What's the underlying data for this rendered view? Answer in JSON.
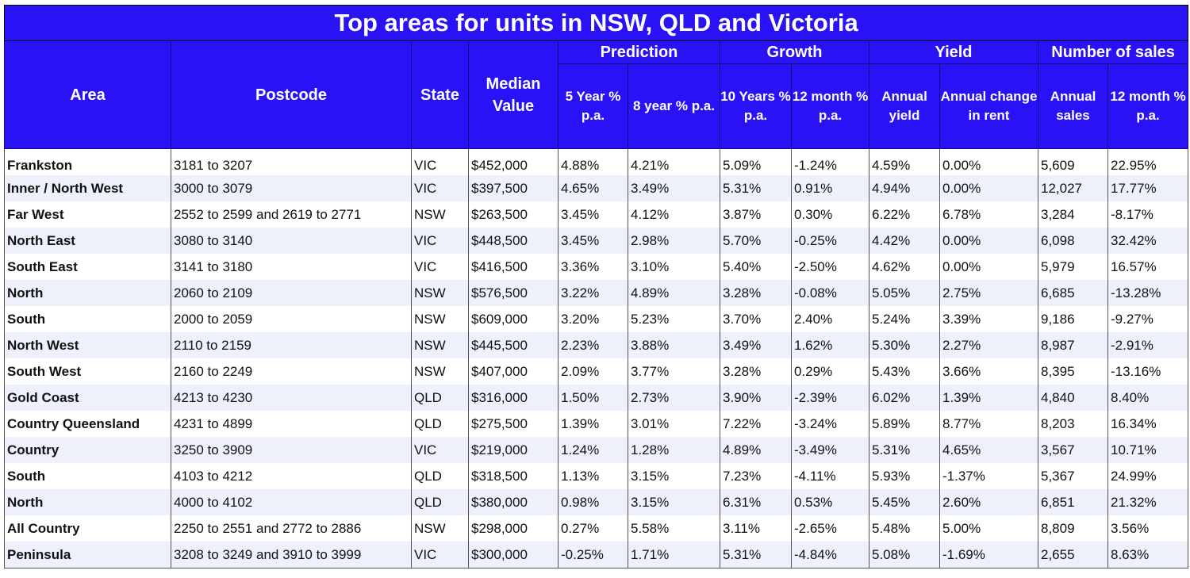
{
  "chart_data": {
    "type": "table",
    "title": "Top areas for units in NSW, QLD and Victoria",
    "group_headers": {
      "prediction": "Prediction",
      "growth": "Growth",
      "yield": "Yield",
      "sales": "Number of sales"
    },
    "columns": {
      "area": "Area",
      "postcode": "Postcode",
      "state": "State",
      "median": "Median Value",
      "pred5": "5 Year % p.a.",
      "pred8": "8 year % p.a.",
      "growth10": "10 Years % p.a.",
      "growth12": "12 month % p.a.",
      "yield_annual": "Annual yield",
      "yield_rent": "Annual change in rent",
      "sales_annual": "Annual sales",
      "sales12": "12 month % p.a."
    },
    "rows": [
      [
        "Frankston",
        "3181 to 3207",
        "VIC",
        "$452,000",
        "4.88%",
        "4.21%",
        "5.09%",
        "-1.24%",
        "4.59%",
        "0.00%",
        "5,609",
        "22.95%"
      ],
      [
        "Inner / North West",
        "3000 to 3079",
        "VIC",
        "$397,500",
        "4.65%",
        "3.49%",
        "5.31%",
        "0.91%",
        "4.94%",
        "0.00%",
        "12,027",
        "17.77%"
      ],
      [
        "Far West",
        "2552 to 2599 and 2619 to 2771",
        "NSW",
        "$263,500",
        "3.45%",
        "4.12%",
        "3.87%",
        "0.30%",
        "6.22%",
        "6.78%",
        "3,284",
        "-8.17%"
      ],
      [
        "North East",
        "3080 to 3140",
        "VIC",
        "$448,500",
        "3.45%",
        "2.98%",
        "5.70%",
        "-0.25%",
        "4.42%",
        "0.00%",
        "6,098",
        "32.42%"
      ],
      [
        "South East",
        "3141 to 3180",
        "VIC",
        "$416,500",
        "3.36%",
        "3.10%",
        "5.40%",
        "-2.50%",
        "4.62%",
        "0.00%",
        "5,979",
        "16.57%"
      ],
      [
        "North",
        "2060 to 2109",
        "NSW",
        "$576,500",
        "3.22%",
        "4.89%",
        "3.28%",
        "-0.08%",
        "5.05%",
        "2.75%",
        "6,685",
        "-13.28%"
      ],
      [
        "South",
        "2000 to 2059",
        "NSW",
        "$609,000",
        "3.20%",
        "5.23%",
        "3.70%",
        "2.40%",
        "5.24%",
        "3.39%",
        "9,186",
        "-9.27%"
      ],
      [
        "North West",
        "2110 to 2159",
        "NSW",
        "$445,500",
        "2.23%",
        "3.88%",
        "3.49%",
        "1.62%",
        "5.30%",
        "2.27%",
        "8,987",
        "-2.91%"
      ],
      [
        "South West",
        "2160 to 2249",
        "NSW",
        "$407,000",
        "2.09%",
        "3.77%",
        "3.28%",
        "0.29%",
        "5.43%",
        "3.66%",
        "8,395",
        "-13.16%"
      ],
      [
        "Gold Coast",
        "4213 to 4230",
        "QLD",
        "$316,000",
        "1.50%",
        "2.73%",
        "3.90%",
        "-2.39%",
        "6.02%",
        "1.39%",
        "4,840",
        "8.40%"
      ],
      [
        "Country Queensland",
        "4231 to 4899",
        "QLD",
        "$275,500",
        "1.39%",
        "3.01%",
        "7.22%",
        "-3.24%",
        "5.89%",
        "8.77%",
        "8,203",
        "16.34%"
      ],
      [
        "Country",
        "3250 to 3909",
        "VIC",
        "$219,000",
        "1.24%",
        "1.28%",
        "4.89%",
        "-3.49%",
        "5.31%",
        "4.65%",
        "3,567",
        "10.71%"
      ],
      [
        "South",
        "4103 to 4212",
        "QLD",
        "$318,500",
        "1.13%",
        "3.15%",
        "7.23%",
        "-4.11%",
        "5.93%",
        "-1.37%",
        "5,367",
        "24.99%"
      ],
      [
        "North",
        "4000 to 4102",
        "QLD",
        "$380,000",
        "0.98%",
        "3.15%",
        "6.31%",
        "0.53%",
        "5.45%",
        "2.60%",
        "6,851",
        "21.32%"
      ],
      [
        "All Country",
        "2250 to 2551 and 2772 to 2886",
        "NSW",
        "$298,000",
        "0.27%",
        "5.58%",
        "3.11%",
        "-2.65%",
        "5.48%",
        "5.00%",
        "8,809",
        "3.56%"
      ],
      [
        "Peninsula",
        "3208 to 3249 and 3910 to 3999",
        "VIC",
        "$300,000",
        "-0.25%",
        "1.71%",
        "5.31%",
        "-4.84%",
        "5.08%",
        "-1.69%",
        "2,655",
        "8.63%"
      ]
    ]
  }
}
